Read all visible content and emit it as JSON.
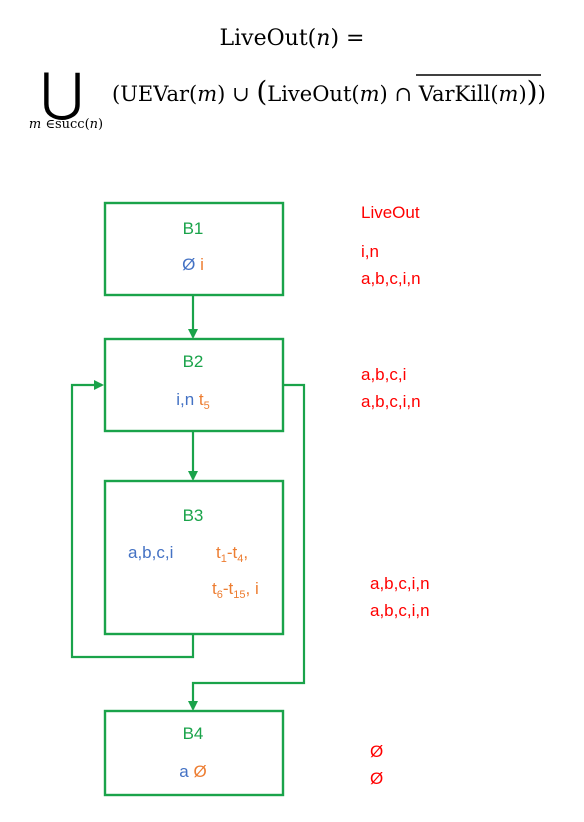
{
  "formula": {
    "lhs_func": "LiveOut",
    "lhs_arg": "n",
    "equals": "=",
    "union_symbol": "⋃",
    "subscript_var": "m",
    "subscript_in": "∈",
    "subscript_set": "succ",
    "subscript_arg": "n",
    "open_paren": "(",
    "uevar": "UEVar",
    "arg_m": "m",
    "union_op": "∪",
    "liveout_func": "LiveOut",
    "intersect_op": "∩",
    "varkill": "VarKill",
    "close_parens": ")"
  },
  "blocks": [
    {
      "id": "B1",
      "label": "B1",
      "uevar": [
        "Ø"
      ],
      "varkill": [
        "i"
      ]
    },
    {
      "id": "B2",
      "label": "B2",
      "uevar": [
        "i,n"
      ],
      "varkill": [
        {
          "base": "t",
          "sub": "5"
        }
      ]
    },
    {
      "id": "B3",
      "label": "B3",
      "uevar": [
        "a,b,c,i"
      ],
      "varkill": [
        [
          {
            "base": "t",
            "sub": "1"
          },
          {
            "text": "-"
          },
          {
            "base": "t",
            "sub": "4"
          },
          {
            "text": ","
          }
        ],
        [
          {
            "base": "t",
            "sub": "6"
          },
          {
            "text": "-"
          },
          {
            "base": "t",
            "sub": "15"
          },
          {
            "text": ", i"
          }
        ]
      ]
    },
    {
      "id": "B4",
      "label": "B4",
      "uevar": [
        "a"
      ],
      "varkill": [
        "Ø"
      ]
    }
  ],
  "liveout": {
    "heading": "LiveOut",
    "columns": [
      [
        "i,n",
        "a,b,c,i,n"
      ],
      [
        "a,b,c,i",
        "a,b,c,i,n"
      ],
      [
        "a,b,c,i,n",
        "a,b,c,i,n"
      ],
      [
        "Ø",
        "Ø"
      ]
    ]
  },
  "colors": {
    "block_border": "#1aa34a",
    "block_label": "#1aa34a",
    "edge": "#1aa34a",
    "uevar": "#4472c4",
    "varkill": "#ed7d31",
    "liveout": "#ff0000",
    "formula": "#000000"
  }
}
